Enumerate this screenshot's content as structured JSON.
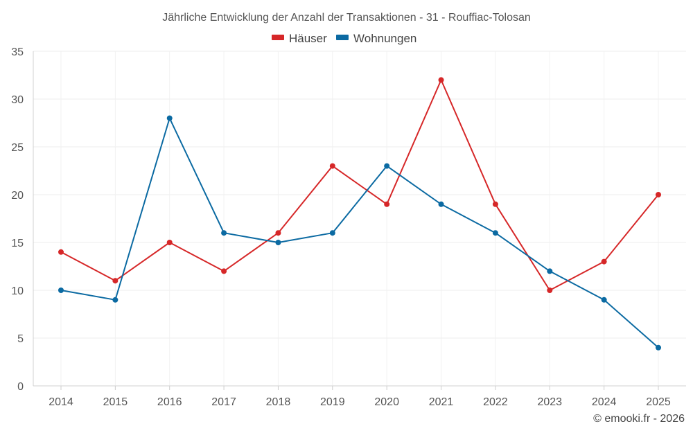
{
  "chart_data": {
    "type": "line",
    "title": "Jährliche Entwicklung der Anzahl der Transaktionen - 31 - Rouffiac-Tolosan",
    "xlabel": "",
    "ylabel": "",
    "x": [
      "2014",
      "2015",
      "2016",
      "2017",
      "2018",
      "2019",
      "2020",
      "2021",
      "2022",
      "2023",
      "2024",
      "2025"
    ],
    "ylim": [
      0,
      35
    ],
    "yticks": [
      "0",
      "5",
      "10",
      "15",
      "20",
      "25",
      "30",
      "35"
    ],
    "grid": true,
    "legend_position": "top-center",
    "series": [
      {
        "name": "Häuser",
        "color": "#d62728",
        "values": [
          14,
          11,
          15,
          12,
          16,
          23,
          19,
          32,
          19,
          10,
          13,
          20
        ]
      },
      {
        "name": "Wohnungen",
        "color": "#0b6aa2",
        "values": [
          10,
          9,
          28,
          16,
          15,
          16,
          23,
          19,
          16,
          12,
          9,
          4
        ]
      }
    ]
  },
  "credit": "© emooki.fr - 2026"
}
